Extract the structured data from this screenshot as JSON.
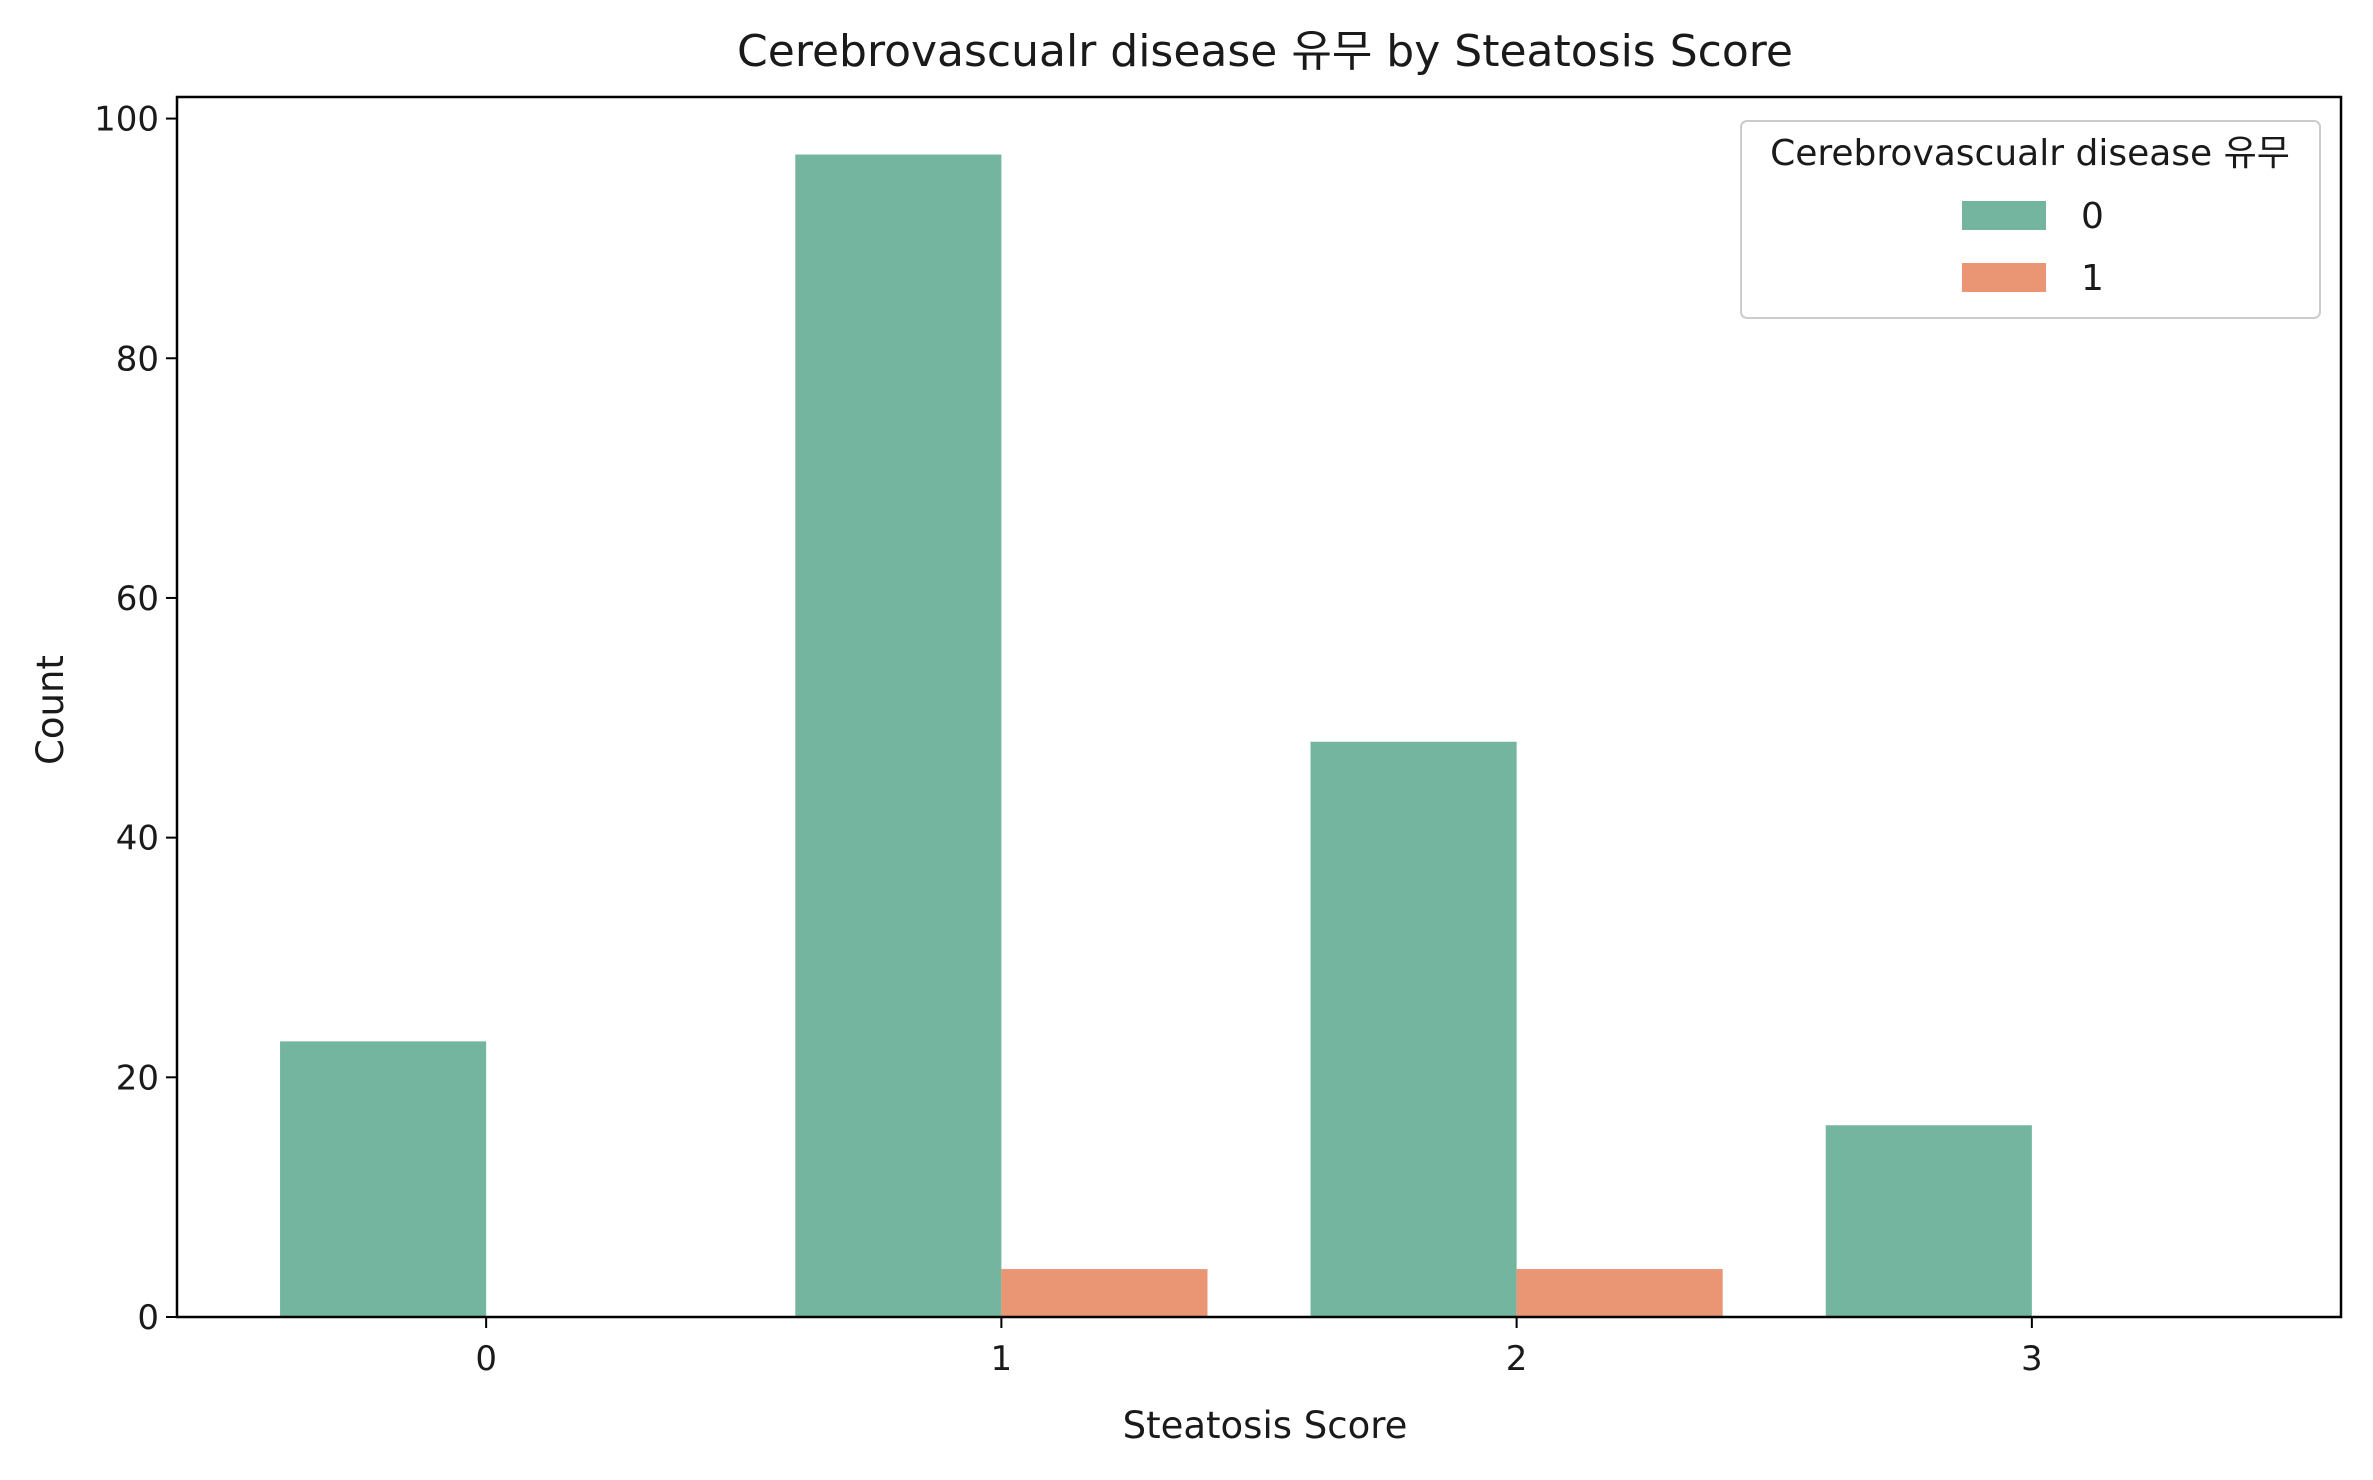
{
  "chart_data": {
    "type": "bar",
    "title": "Cerebrovascualr disease 유무 by Steatosis Score",
    "xlabel": "Steatosis Score",
    "ylabel": "Count",
    "categories": [
      "0",
      "1",
      "2",
      "3"
    ],
    "series": [
      {
        "name": "0",
        "values": [
          23,
          97,
          48,
          16
        ],
        "color": "#73b59f"
      },
      {
        "name": "1",
        "values": [
          0,
          4,
          4,
          0
        ],
        "color": "#ea9674"
      }
    ],
    "ylim": [
      0,
      101.8
    ],
    "yticks": [
      0,
      20,
      40,
      60,
      80,
      100
    ],
    "grid": false,
    "legend": {
      "title": "Cerebrovascualr disease 유무",
      "position": "top-right"
    }
  }
}
